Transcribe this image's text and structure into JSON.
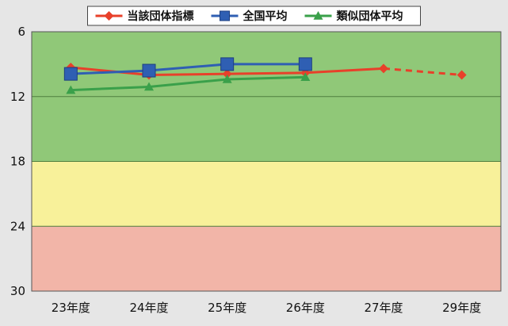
{
  "chart_data": {
    "type": "line",
    "title": "",
    "xlabel": "",
    "ylabel": "",
    "categories": [
      "23年度",
      "24年度",
      "25年度",
      "26年度",
      "27年度",
      "29年度"
    ],
    "y_axis": {
      "range": [
        6,
        30
      ],
      "inverted": true,
      "ticks": [
        "6",
        "12",
        "18",
        "24",
        "30"
      ]
    },
    "grid": true,
    "legend_position": "top",
    "bands": [
      {
        "from": 6,
        "to": 18,
        "color": "#90c878"
      },
      {
        "from": 18,
        "to": 24,
        "color": "#f8f19a"
      },
      {
        "from": 24,
        "to": 30,
        "color": "#f2b5a8"
      }
    ],
    "series": [
      {
        "name": "当該団体指標",
        "color": "#e8402a",
        "marker": "diamond",
        "values": [
          9.3,
          10.0,
          9.9,
          9.8,
          9.4,
          10.0
        ],
        "dashed_from_index": 4
      },
      {
        "name": "全国平均",
        "color": "#2f5fb3",
        "marker": "square",
        "values": [
          9.9,
          9.6,
          9.0,
          9.0,
          null,
          null
        ]
      },
      {
        "name": "類似団体平均",
        "color": "#3aa04a",
        "marker": "triangle",
        "values": [
          11.4,
          11.1,
          10.4,
          10.2,
          null,
          null
        ]
      }
    ]
  }
}
